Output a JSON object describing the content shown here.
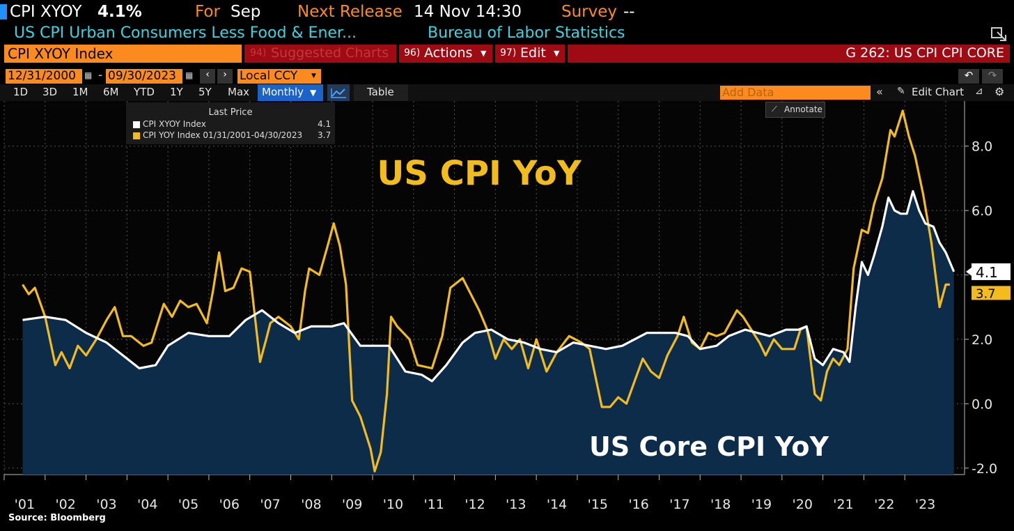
{
  "header": {
    "ticker": "CPI XYOY",
    "value": "4.1%",
    "for_label": "For",
    "for_value": "Sep",
    "next_release_label": "Next Release",
    "next_release_value": "14 Nov 14:30",
    "survey_label": "Survey",
    "survey_value": "--",
    "description": "US CPI Urban Consumers Less Food & Ener...",
    "source_name": "Bureau of Labor Statistics"
  },
  "toolbar": {
    "index_field": "CPI XYOY Index",
    "suggested_num": "94)",
    "suggested_label": "Suggested Charts",
    "actions_num": "96)",
    "actions_label": "Actions",
    "edit_num": "97)",
    "edit_label": "Edit",
    "chart_id": "G 262: US CPI CPI CORE",
    "start_date": "12/31/2000",
    "end_date": "09/30/2023",
    "date_sep": "-",
    "currency": "Local CCY",
    "add_data_placeholder": "Add Data",
    "edit_chart_label": "Edit Chart",
    "annotate_label": "Annotate",
    "ranges": [
      "1D",
      "3D",
      "1M",
      "6M",
      "YTD",
      "1Y",
      "5Y",
      "Max"
    ],
    "frequency": "Monthly",
    "table_label": "Table"
  },
  "legend": {
    "title": "Last Price",
    "items": [
      {
        "label": "CPI XYOY Index",
        "value": "4.1",
        "color": "#ffffff"
      },
      {
        "label": "CPI YOY Index 01/31/2001-04/30/2023",
        "value": "3.7",
        "color": "#f2bc1c"
      }
    ]
  },
  "chart_data": {
    "type": "line",
    "title": "US CPI YoY",
    "subtitle": "US Core CPI YoY",
    "ylim": [
      -2.2,
      9.4
    ],
    "yticks": [
      "8.0",
      "6.0",
      "4.0",
      "2.0",
      "0.0",
      "-2.0"
    ],
    "xticks": [
      "'01",
      "'02",
      "'03",
      "'04",
      "'05",
      "'06",
      "'07",
      "'08",
      "'09",
      "'10",
      "'11",
      "'12",
      "'13",
      "'14",
      "'15",
      "'16",
      "'17",
      "'18",
      "'19",
      "'20",
      "'21",
      "'22",
      "'23"
    ],
    "grid": true,
    "series": [
      {
        "name": "CPI XYOY Index",
        "color": "#ffffff",
        "fill": "#0c2c4a",
        "last_value": "4.1",
        "points": [
          [
            2000.95,
            2.6
          ],
          [
            2001.5,
            2.7
          ],
          [
            2002.0,
            2.6
          ],
          [
            2002.5,
            2.2
          ],
          [
            2003.0,
            1.9
          ],
          [
            2003.4,
            1.5
          ],
          [
            2003.8,
            1.1
          ],
          [
            2004.2,
            1.2
          ],
          [
            2004.5,
            1.8
          ],
          [
            2005.0,
            2.2
          ],
          [
            2005.5,
            2.1
          ],
          [
            2006.0,
            2.1
          ],
          [
            2006.4,
            2.6
          ],
          [
            2006.8,
            2.9
          ],
          [
            2007.2,
            2.5
          ],
          [
            2007.6,
            2.2
          ],
          [
            2008.0,
            2.4
          ],
          [
            2008.5,
            2.4
          ],
          [
            2008.8,
            2.5
          ],
          [
            2009.2,
            1.8
          ],
          [
            2009.6,
            1.8
          ],
          [
            2009.9,
            1.8
          ],
          [
            2010.3,
            1.0
          ],
          [
            2010.7,
            0.9
          ],
          [
            2010.95,
            0.7
          ],
          [
            2011.3,
            1.2
          ],
          [
            2011.7,
            1.9
          ],
          [
            2012.0,
            2.2
          ],
          [
            2012.4,
            2.3
          ],
          [
            2012.8,
            2.0
          ],
          [
            2013.2,
            1.9
          ],
          [
            2013.6,
            1.7
          ],
          [
            2014.0,
            1.6
          ],
          [
            2014.4,
            1.9
          ],
          [
            2014.8,
            1.8
          ],
          [
            2015.2,
            1.7
          ],
          [
            2015.6,
            1.8
          ],
          [
            2015.9,
            2.0
          ],
          [
            2016.2,
            2.2
          ],
          [
            2016.6,
            2.2
          ],
          [
            2016.9,
            2.2
          ],
          [
            2017.2,
            2.1
          ],
          [
            2017.5,
            1.7
          ],
          [
            2017.9,
            1.8
          ],
          [
            2018.2,
            2.1
          ],
          [
            2018.6,
            2.3
          ],
          [
            2018.9,
            2.2
          ],
          [
            2019.2,
            2.1
          ],
          [
            2019.6,
            2.3
          ],
          [
            2019.9,
            2.3
          ],
          [
            2020.1,
            2.4
          ],
          [
            2020.3,
            1.4
          ],
          [
            2020.5,
            1.2
          ],
          [
            2020.75,
            1.7
          ],
          [
            2021.0,
            1.6
          ],
          [
            2021.15,
            1.3
          ],
          [
            2021.3,
            3.0
          ],
          [
            2021.45,
            4.4
          ],
          [
            2021.6,
            4.0
          ],
          [
            2021.75,
            4.6
          ],
          [
            2021.95,
            5.5
          ],
          [
            2022.1,
            6.4
          ],
          [
            2022.25,
            6.0
          ],
          [
            2022.4,
            5.9
          ],
          [
            2022.55,
            5.9
          ],
          [
            2022.7,
            6.6
          ],
          [
            2022.85,
            6.0
          ],
          [
            2023.0,
            5.6
          ],
          [
            2023.2,
            5.5
          ],
          [
            2023.35,
            5.0
          ],
          [
            2023.5,
            4.7
          ],
          [
            2023.7,
            4.1
          ]
        ]
      },
      {
        "name": "CPI YOY Index 01/31/2001-04/30/2023",
        "color": "#f2bc1c",
        "last_value": "3.7",
        "points": [
          [
            2000.95,
            3.7
          ],
          [
            2001.1,
            3.4
          ],
          [
            2001.25,
            3.6
          ],
          [
            2001.5,
            2.7
          ],
          [
            2001.75,
            1.2
          ],
          [
            2001.9,
            1.6
          ],
          [
            2002.1,
            1.1
          ],
          [
            2002.3,
            1.8
          ],
          [
            2002.5,
            1.5
          ],
          [
            2002.75,
            2.0
          ],
          [
            2003.0,
            2.6
          ],
          [
            2003.2,
            3.0
          ],
          [
            2003.4,
            2.1
          ],
          [
            2003.6,
            2.1
          ],
          [
            2003.9,
            1.8
          ],
          [
            2004.1,
            1.9
          ],
          [
            2004.4,
            3.1
          ],
          [
            2004.6,
            2.7
          ],
          [
            2004.8,
            3.2
          ],
          [
            2005.0,
            3.0
          ],
          [
            2005.2,
            3.1
          ],
          [
            2005.45,
            2.5
          ],
          [
            2005.6,
            3.5
          ],
          [
            2005.75,
            4.7
          ],
          [
            2005.9,
            3.5
          ],
          [
            2006.1,
            3.6
          ],
          [
            2006.3,
            4.2
          ],
          [
            2006.5,
            4.1
          ],
          [
            2006.75,
            1.3
          ],
          [
            2006.9,
            2.0
          ],
          [
            2007.0,
            2.5
          ],
          [
            2007.2,
            2.7
          ],
          [
            2007.5,
            2.4
          ],
          [
            2007.7,
            2.0
          ],
          [
            2007.85,
            3.5
          ],
          [
            2007.95,
            4.2
          ],
          [
            2008.2,
            4.0
          ],
          [
            2008.4,
            4.9
          ],
          [
            2008.55,
            5.6
          ],
          [
            2008.7,
            4.9
          ],
          [
            2008.85,
            3.7
          ],
          [
            2009.0,
            0.1
          ],
          [
            2009.2,
            -0.4
          ],
          [
            2009.45,
            -1.4
          ],
          [
            2009.55,
            -2.1
          ],
          [
            2009.7,
            -1.5
          ],
          [
            2009.85,
            0.3
          ],
          [
            2009.95,
            2.7
          ],
          [
            2010.1,
            2.4
          ],
          [
            2010.4,
            2.0
          ],
          [
            2010.6,
            1.2
          ],
          [
            2010.95,
            1.1
          ],
          [
            2011.2,
            2.1
          ],
          [
            2011.4,
            3.6
          ],
          [
            2011.7,
            3.9
          ],
          [
            2011.9,
            3.4
          ],
          [
            2012.1,
            2.9
          ],
          [
            2012.3,
            2.3
          ],
          [
            2012.5,
            1.4
          ],
          [
            2012.7,
            2.0
          ],
          [
            2012.9,
            1.7
          ],
          [
            2013.1,
            2.0
          ],
          [
            2013.3,
            1.1
          ],
          [
            2013.5,
            2.0
          ],
          [
            2013.75,
            1.0
          ],
          [
            2014.0,
            1.6
          ],
          [
            2014.3,
            2.1
          ],
          [
            2014.6,
            1.9
          ],
          [
            2014.8,
            1.7
          ],
          [
            2014.95,
            0.8
          ],
          [
            2015.1,
            -0.1
          ],
          [
            2015.3,
            -0.1
          ],
          [
            2015.5,
            0.2
          ],
          [
            2015.7,
            0.0
          ],
          [
            2015.9,
            0.7
          ],
          [
            2016.1,
            1.4
          ],
          [
            2016.3,
            1.0
          ],
          [
            2016.5,
            0.8
          ],
          [
            2016.7,
            1.5
          ],
          [
            2016.95,
            2.1
          ],
          [
            2017.1,
            2.7
          ],
          [
            2017.3,
            1.9
          ],
          [
            2017.5,
            1.7
          ],
          [
            2017.7,
            2.2
          ],
          [
            2017.9,
            2.1
          ],
          [
            2018.1,
            2.2
          ],
          [
            2018.4,
            2.9
          ],
          [
            2018.55,
            2.7
          ],
          [
            2018.75,
            2.3
          ],
          [
            2018.95,
            1.9
          ],
          [
            2019.1,
            1.5
          ],
          [
            2019.3,
            2.0
          ],
          [
            2019.5,
            1.7
          ],
          [
            2019.8,
            1.7
          ],
          [
            2019.95,
            2.3
          ],
          [
            2020.1,
            2.4
          ],
          [
            2020.3,
            0.3
          ],
          [
            2020.45,
            0.1
          ],
          [
            2020.6,
            1.0
          ],
          [
            2020.75,
            1.4
          ],
          [
            2020.9,
            1.2
          ],
          [
            2021.1,
            1.7
          ],
          [
            2021.25,
            4.2
          ],
          [
            2021.45,
            5.4
          ],
          [
            2021.6,
            5.3
          ],
          [
            2021.75,
            6.2
          ],
          [
            2021.95,
            7.0
          ],
          [
            2022.15,
            8.5
          ],
          [
            2022.25,
            8.3
          ],
          [
            2022.45,
            9.1
          ],
          [
            2022.6,
            8.3
          ],
          [
            2022.75,
            7.7
          ],
          [
            2022.95,
            6.5
          ],
          [
            2023.15,
            5.0
          ],
          [
            2023.35,
            3.0
          ],
          [
            2023.5,
            3.7
          ],
          [
            2023.6,
            3.7
          ]
        ]
      }
    ]
  },
  "footer": {
    "source": "Source: Bloomberg"
  }
}
